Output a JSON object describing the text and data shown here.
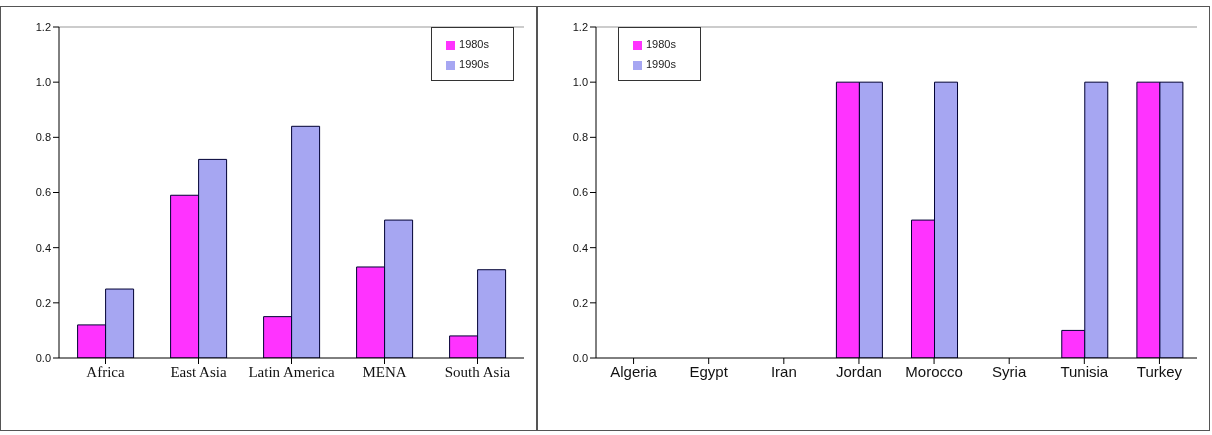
{
  "chart_data": [
    {
      "type": "bar",
      "categories": [
        "Africa",
        "East Asia",
        "Latin America",
        "MENA",
        "South Asia"
      ],
      "series": [
        {
          "name": "1980s",
          "color": "#ff33ff",
          "values": [
            0.12,
            0.59,
            0.15,
            0.33,
            0.08
          ]
        },
        {
          "name": "1990s",
          "color": "#a6a6f2",
          "values": [
            0.25,
            0.72,
            0.84,
            0.5,
            0.32
          ]
        }
      ],
      "ylim": [
        0,
        1.2
      ],
      "yticks": [
        {
          "value": 0,
          "label": "0.0"
        },
        {
          "value": 0.2,
          "label": "0.2"
        },
        {
          "value": 0.4,
          "label": "0.4"
        },
        {
          "value": 0.6,
          "label": "0.6"
        },
        {
          "value": 0.8,
          "label": "0.8"
        },
        {
          "value": 1,
          "label": "1.0"
        },
        {
          "value": 1.2,
          "label": "1.2"
        }
      ],
      "grid": false,
      "legend": "top right"
    },
    {
      "type": "bar",
      "categories": [
        "Algeria",
        "Egypt",
        "Iran",
        "Jordan",
        "Morocco",
        "Syria",
        "Tunisia",
        "Turkey"
      ],
      "series": [
        {
          "name": "1980s",
          "color": "#ff33ff",
          "values": [
            0,
            0,
            0,
            1,
            0.5,
            0,
            0.1,
            1
          ]
        },
        {
          "name": "1990s",
          "color": "#a6a6f2",
          "values": [
            0,
            0,
            0,
            1,
            1,
            0,
            1,
            1
          ]
        }
      ],
      "ylim": [
        0,
        1.2
      ],
      "yticks": [
        {
          "value": 0,
          "label": "0.0"
        },
        {
          "value": 0.2,
          "label": "0.2"
        },
        {
          "value": 0.4,
          "label": "0.4"
        },
        {
          "value": 0.6,
          "label": "0.6"
        },
        {
          "value": 0.8,
          "label": "0.8"
        },
        {
          "value": 1,
          "label": "1.0"
        },
        {
          "value": 1.2,
          "label": "1.2"
        }
      ],
      "grid": false,
      "legend": "top left"
    }
  ]
}
